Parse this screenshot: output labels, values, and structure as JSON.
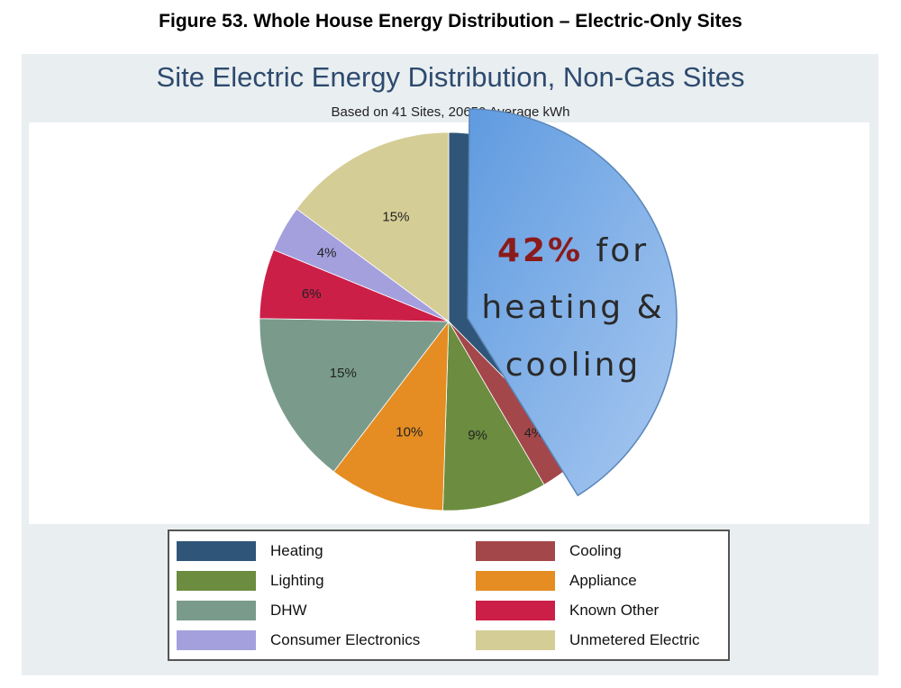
{
  "figure_title": "Figure 53.  Whole House Energy Distribution – Electric-Only Sites",
  "chart_data": {
    "type": "pie",
    "title": "Site Electric Energy Distribution, Non-Gas Sites",
    "subtitle": "Based on 41 Sites, 20650 Average kWh",
    "slices": [
      {
        "name": "Heating",
        "value": 38,
        "color": "#2f5678",
        "exploded": true
      },
      {
        "name": "Cooling",
        "value": 4,
        "color": "#a3474b",
        "label": "4%",
        "exploded": true
      },
      {
        "name": "Lighting",
        "value": 9,
        "color": "#6c8c3f",
        "label": "9%"
      },
      {
        "name": "Appliance",
        "value": 10,
        "color": "#e58d22",
        "label": "10%"
      },
      {
        "name": "DHW",
        "value": 15,
        "color": "#7a9b8c",
        "label": "15%"
      },
      {
        "name": "Known Other",
        "value": 6,
        "color": "#cc1f48",
        "label": "6%"
      },
      {
        "name": "Consumer Electronics",
        "value": 4,
        "color": "#a49fdd",
        "label": "4%"
      },
      {
        "name": "Unmetered Electric",
        "value": 15,
        "color": "#d5cd96",
        "label": "15%"
      }
    ],
    "legend_position": "bottom",
    "callout": {
      "highlight": "42%",
      "line1_rest": " for",
      "line2": "heating &",
      "line3": "cooling",
      "fill": "#a8c8f0",
      "highlight_color": "#8b1a1a"
    }
  },
  "legend": [
    {
      "label": "Heating",
      "color": "#2f5678"
    },
    {
      "label": "Cooling",
      "color": "#a3474b"
    },
    {
      "label": "Lighting",
      "color": "#6c8c3f"
    },
    {
      "label": "Appliance",
      "color": "#e58d22"
    },
    {
      "label": "DHW",
      "color": "#7a9b8c"
    },
    {
      "label": "Known Other",
      "color": "#cc1f48"
    },
    {
      "label": "Consumer Electronics",
      "color": "#a49fdd"
    },
    {
      "label": "Unmetered Electric",
      "color": "#d5cd96"
    }
  ]
}
